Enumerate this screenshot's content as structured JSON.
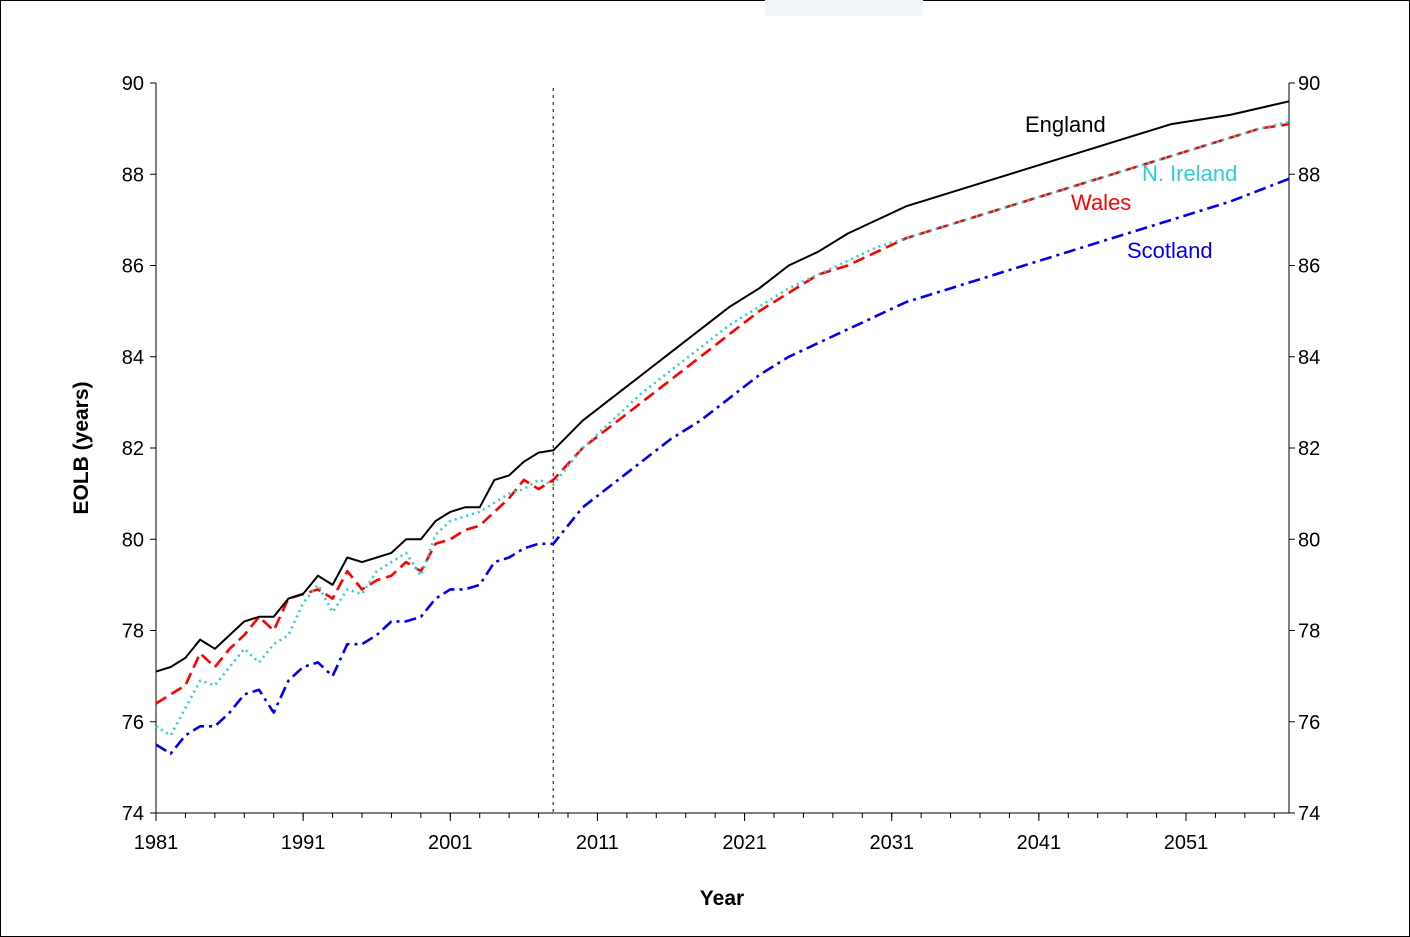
{
  "chart_data": {
    "type": "line",
    "xlabel": "Year",
    "ylabel": "EOLB (years)",
    "xlim": [
      1981,
      2058
    ],
    "ylim": [
      74,
      90
    ],
    "x_ticks": [
      "1981",
      "1991",
      "2001",
      "2011",
      "2021",
      "2031",
      "2041",
      "2051"
    ],
    "y_ticks_left": [
      "74",
      "76",
      "78",
      "80",
      "82",
      "84",
      "86",
      "88",
      "90"
    ],
    "y_ticks_right": [
      "74",
      "76",
      "78",
      "80",
      "82",
      "84",
      "86",
      "88",
      "90"
    ],
    "grid": false,
    "projection_marker_year": 2008,
    "series": [
      {
        "name": "England",
        "color": "#000000",
        "style": "solid",
        "x": [
          1981,
          1982,
          1983,
          1984,
          1985,
          1986,
          1987,
          1988,
          1989,
          1990,
          1991,
          1992,
          1993,
          1994,
          1995,
          1996,
          1997,
          1998,
          1999,
          2000,
          2001,
          2002,
          2003,
          2004,
          2005,
          2006,
          2007,
          2008,
          2010,
          2012,
          2014,
          2016,
          2018,
          2020,
          2022,
          2024,
          2026,
          2028,
          2030,
          2032,
          2034,
          2036,
          2038,
          2040,
          2042,
          2044,
          2046,
          2048,
          2050,
          2052,
          2054,
          2056,
          2058
        ],
        "y": [
          77.1,
          77.2,
          77.4,
          77.8,
          77.6,
          77.9,
          78.2,
          78.3,
          78.3,
          78.7,
          78.8,
          79.2,
          79.0,
          79.6,
          79.5,
          79.6,
          79.7,
          80.0,
          80.0,
          80.4,
          80.6,
          80.7,
          80.7,
          81.3,
          81.4,
          81.7,
          81.9,
          81.95,
          82.6,
          83.1,
          83.6,
          84.1,
          84.6,
          85.1,
          85.5,
          86.0,
          86.3,
          86.7,
          87.0,
          87.3,
          87.5,
          87.7,
          87.9,
          88.1,
          88.3,
          88.5,
          88.7,
          88.9,
          89.1,
          89.2,
          89.3,
          89.45,
          89.6
        ]
      },
      {
        "name": "N. Ireland",
        "color": "#33cccc",
        "style": "dotted",
        "x": [
          1981,
          1982,
          1983,
          1984,
          1985,
          1986,
          1987,
          1988,
          1989,
          1990,
          1991,
          1992,
          1993,
          1994,
          1995,
          1996,
          1997,
          1998,
          1999,
          2000,
          2001,
          2002,
          2003,
          2004,
          2005,
          2006,
          2007,
          2008,
          2010,
          2012,
          2014,
          2016,
          2018,
          2020,
          2022,
          2024,
          2026,
          2028,
          2030,
          2032,
          2034,
          2036,
          2038,
          2040,
          2042,
          2044,
          2046,
          2048,
          2050,
          2052,
          2054,
          2056,
          2058
        ],
        "y": [
          75.9,
          75.7,
          76.3,
          76.9,
          76.8,
          77.2,
          77.6,
          77.3,
          77.7,
          77.9,
          78.6,
          79.0,
          78.4,
          78.9,
          78.8,
          79.3,
          79.5,
          79.7,
          79.2,
          80.1,
          80.4,
          80.5,
          80.6,
          80.8,
          81.0,
          81.1,
          81.3,
          81.2,
          82.0,
          82.6,
          83.2,
          83.7,
          84.2,
          84.7,
          85.1,
          85.5,
          85.8,
          86.1,
          86.4,
          86.6,
          86.8,
          87.0,
          87.2,
          87.4,
          87.6,
          87.8,
          88.0,
          88.2,
          88.4,
          88.6,
          88.8,
          89.0,
          89.15
        ]
      },
      {
        "name": "Wales",
        "color": "#ff0000",
        "style": "dashed",
        "x": [
          1981,
          1982,
          1983,
          1984,
          1985,
          1986,
          1987,
          1988,
          1989,
          1990,
          1991,
          1992,
          1993,
          1994,
          1995,
          1996,
          1997,
          1998,
          1999,
          2000,
          2001,
          2002,
          2003,
          2004,
          2005,
          2006,
          2007,
          2008,
          2010,
          2012,
          2014,
          2016,
          2018,
          2020,
          2022,
          2024,
          2026,
          2028,
          2030,
          2032,
          2034,
          2036,
          2038,
          2040,
          2042,
          2044,
          2046,
          2048,
          2050,
          2052,
          2054,
          2056,
          2058
        ],
        "y": [
          76.4,
          76.6,
          76.8,
          77.5,
          77.2,
          77.6,
          77.9,
          78.3,
          78.0,
          78.7,
          78.8,
          78.9,
          78.7,
          79.3,
          78.9,
          79.1,
          79.2,
          79.5,
          79.3,
          79.9,
          80.0,
          80.2,
          80.3,
          80.6,
          80.9,
          81.3,
          81.1,
          81.3,
          82.0,
          82.5,
          83.0,
          83.5,
          84.0,
          84.5,
          85.0,
          85.4,
          85.8,
          86.0,
          86.3,
          86.6,
          86.8,
          87.0,
          87.2,
          87.4,
          87.6,
          87.8,
          88.0,
          88.2,
          88.4,
          88.6,
          88.8,
          89.0,
          89.1
        ]
      },
      {
        "name": "Scotland",
        "color": "#0000ee",
        "style": "dashdot",
        "x": [
          1981,
          1982,
          1983,
          1984,
          1985,
          1986,
          1987,
          1988,
          1989,
          1990,
          1991,
          1992,
          1993,
          1994,
          1995,
          1996,
          1997,
          1998,
          1999,
          2000,
          2001,
          2002,
          2003,
          2004,
          2005,
          2006,
          2007,
          2008,
          2010,
          2012,
          2014,
          2016,
          2018,
          2020,
          2022,
          2024,
          2026,
          2028,
          2030,
          2032,
          2034,
          2036,
          2038,
          2040,
          2042,
          2044,
          2046,
          2048,
          2050,
          2052,
          2054,
          2056,
          2058
        ],
        "y": [
          75.5,
          75.3,
          75.7,
          75.9,
          75.9,
          76.2,
          76.6,
          76.7,
          76.2,
          76.9,
          77.2,
          77.3,
          77.0,
          77.7,
          77.7,
          77.9,
          78.2,
          78.2,
          78.3,
          78.7,
          78.9,
          78.9,
          79.0,
          79.5,
          79.6,
          79.8,
          79.9,
          79.9,
          80.7,
          81.2,
          81.7,
          82.2,
          82.6,
          83.1,
          83.6,
          84.0,
          84.3,
          84.6,
          84.9,
          85.2,
          85.4,
          85.6,
          85.8,
          86.0,
          86.2,
          86.4,
          86.6,
          86.8,
          87.0,
          87.2,
          87.4,
          87.65,
          87.9
        ]
      }
    ]
  }
}
